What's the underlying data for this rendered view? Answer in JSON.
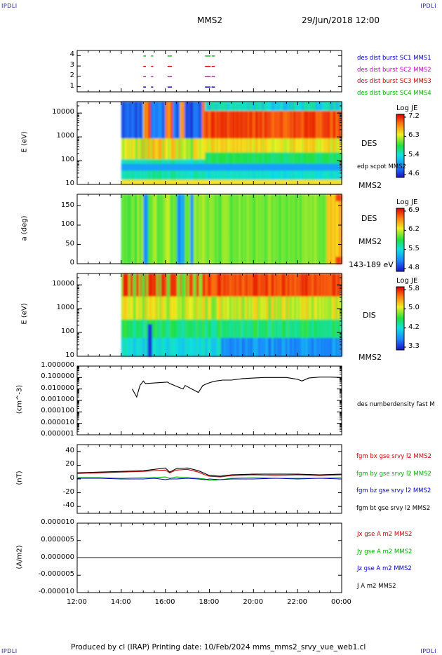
{
  "corners": {
    "tl": "IPDLI",
    "tr": "IPDLI",
    "bl": "IPDLI",
    "br": "IPDLI"
  },
  "header": {
    "mission": "MMS2",
    "datetime": "29/Jun/2018 12:00"
  },
  "footer": {
    "text": "Produced by cl (IRAP)   Printing date: 10/Feb/2024   mms_mms2_srvy_vue_web1.cl"
  },
  "colors": {
    "mms1": "#0000c8",
    "mms2": "#c800c8",
    "mms3": "#d00000",
    "mms4": "#00b400",
    "bx": "#d00000",
    "by": "#00b400",
    "bz": "#0000c8",
    "bt": "#000000"
  },
  "chart_data": [
    {
      "id": "burst",
      "type": "scatter",
      "ylabel": "",
      "ytick_labels": [
        "1",
        "2",
        "3",
        "4"
      ],
      "ylim": [
        0.5,
        4.5
      ],
      "legend": [
        {
          "text": "des dist burst SC1 MMS1",
          "color": "#0000c8"
        },
        {
          "text": "des dist burst SC2 MMS2",
          "color": "#c800c8"
        },
        {
          "text": "des dist burst SC3 MMS3",
          "color": "#d00000"
        },
        {
          "text": "des dist burst SC4 MMS4",
          "color": "#00b400"
        }
      ],
      "intervals_hours": [
        [
          15.0,
          15.12
        ],
        [
          15.35,
          15.45
        ],
        [
          16.1,
          16.3
        ],
        [
          17.8,
          18.05
        ],
        [
          18.1,
          18.25
        ]
      ]
    },
    {
      "id": "des_energy",
      "type": "heatmap",
      "ylabel": "E (eV)",
      "yscale": "log",
      "ytick_labels": [
        "10",
        "100",
        "1000",
        "10000"
      ],
      "ylim": [
        10,
        30000
      ],
      "side_labels": [
        "DES",
        "edp scpot MMS2",
        "MMS2"
      ],
      "colorbar": {
        "title": "Log JE",
        "ticks": [
          "7.2",
          "6.3",
          "5.4",
          "4.6"
        ],
        "range": [
          4.6,
          7.2
        ]
      },
      "data_start_hour": 14.0
    },
    {
      "id": "des_pitch",
      "type": "heatmap",
      "ylabel": "a (deg)",
      "ytick_labels": [
        "0",
        "50",
        "100",
        "150"
      ],
      "ylim": [
        0,
        180
      ],
      "side_labels": [
        "DES",
        "MMS2",
        "143-189 eV"
      ],
      "colorbar": {
        "title": "Log JE",
        "ticks": [
          "6.9",
          "6.2",
          "5.5",
          "4.8"
        ],
        "range": [
          4.8,
          6.9
        ]
      },
      "data_start_hour": 14.0
    },
    {
      "id": "dis_energy",
      "type": "heatmap",
      "ylabel": "E (eV)",
      "yscale": "log",
      "ytick_labels": [
        "10",
        "100",
        "1000",
        "10000"
      ],
      "ylim": [
        10,
        30000
      ],
      "side_labels": [
        "DIS",
        "MMS2"
      ],
      "colorbar": {
        "title": "Log JE",
        "ticks": [
          "5.8",
          "5.0",
          "4.2",
          "3.3"
        ],
        "range": [
          3.3,
          5.8
        ]
      },
      "data_start_hour": 14.0
    },
    {
      "id": "density",
      "type": "line",
      "yscale": "log",
      "ylabel": "(cm^-3)",
      "ytick_labels": [
        "0.000001",
        "0.000010",
        "0.000100",
        "0.001000",
        "0.010000",
        "0.100000",
        "1.000000"
      ],
      "ylim": [
        1e-06,
        1.0
      ],
      "side_labels": [
        "des numberdensity fast M"
      ],
      "series": [
        {
          "x": [
            14.5,
            14.7,
            14.85,
            15.0,
            15.1,
            16.1,
            16.2,
            16.8,
            16.9,
            17.5,
            17.7,
            17.9,
            18.1,
            18.3,
            18.6,
            19.0,
            19.5,
            20.0,
            20.5,
            21.0,
            21.5,
            22.0,
            22.2,
            22.5,
            23.0,
            23.5,
            24.0
          ],
          "y": [
            0.01,
            0.002,
            0.02,
            0.05,
            0.03,
            0.04,
            0.03,
            0.01,
            0.02,
            0.005,
            0.02,
            0.03,
            0.04,
            0.05,
            0.06,
            0.06,
            0.08,
            0.09,
            0.1,
            0.1,
            0.1,
            0.07,
            0.05,
            0.09,
            0.11,
            0.11,
            0.1
          ]
        }
      ]
    },
    {
      "id": "fgm",
      "type": "line",
      "ylabel": "(nT)",
      "ytick_labels": [
        "-40",
        "-20",
        "0",
        "20",
        "40"
      ],
      "ylim": [
        -50,
        50
      ],
      "legend": [
        {
          "text": "fgm bx gse srvy l2 MMS2",
          "color": "#d00000"
        },
        {
          "text": "fgm by gse srvy l2 MMS2",
          "color": "#00b400"
        },
        {
          "text": "fgm bz gse srvy l2 MMS2",
          "color": "#0000c8"
        },
        {
          "text": "fgm bt gse srvy l2 MMS2",
          "color": "#000000"
        }
      ],
      "x": [
        12,
        13,
        14,
        15,
        15.5,
        16,
        16.2,
        16.5,
        17,
        17.5,
        17.8,
        18,
        18.5,
        19,
        20,
        21,
        22,
        23,
        24
      ],
      "series": [
        {
          "y": [
            8,
            9,
            10,
            11,
            12,
            13,
            9,
            13,
            14,
            10,
            6,
            4,
            3,
            5,
            6,
            5,
            6,
            5,
            6
          ]
        },
        {
          "y": [
            2,
            2,
            1,
            2,
            2,
            3,
            1,
            3,
            2,
            1,
            0,
            -2,
            -1,
            1,
            2,
            1,
            1,
            1,
            2
          ]
        },
        {
          "y": [
            1,
            1,
            0,
            0,
            1,
            -1,
            0,
            0,
            1,
            0,
            -1,
            0,
            -1,
            0,
            0,
            1,
            0,
            1,
            0
          ]
        },
        {
          "y": [
            9,
            10,
            11,
            12,
            14,
            16,
            10,
            15,
            16,
            12,
            8,
            5,
            4,
            6,
            7,
            7,
            7,
            6,
            7
          ]
        }
      ]
    },
    {
      "id": "current",
      "type": "line",
      "ylabel": "(A/m2)",
      "ytick_labels": [
        "-0.000010",
        "-0.000005",
        "0.000000",
        "0.000005",
        "0.000010"
      ],
      "ylim": [
        -1e-05,
        1e-05
      ],
      "legend": [
        {
          "text": "Jx gse A m2 MMS2",
          "color": "#d00000"
        },
        {
          "text": "Jy gse A m2 MMS2",
          "color": "#00b400"
        },
        {
          "text": "Jz gse A m2 MMS2",
          "color": "#0000c8"
        },
        {
          "text": "J A m2 MMS2",
          "color": "#000000"
        }
      ],
      "series": [
        {
          "x": [
            12,
            24
          ],
          "y": [
            0,
            0
          ]
        }
      ]
    }
  ],
  "xaxis": {
    "ticks": [
      "12:00",
      "14:00",
      "16:00",
      "18:00",
      "20:00",
      "22:00",
      "00:00"
    ],
    "range_hours": [
      12,
      24
    ]
  }
}
